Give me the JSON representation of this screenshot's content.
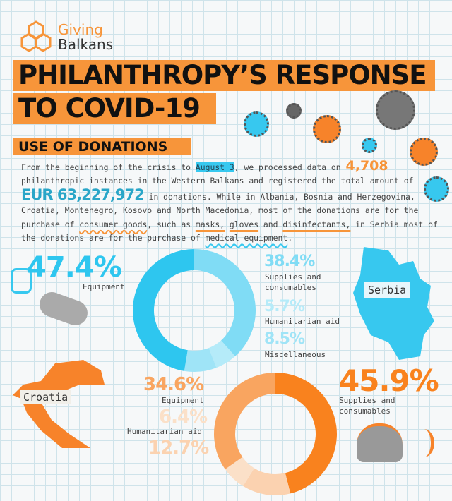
{
  "logo": {
    "line1": "Giving",
    "line2": "Balkans",
    "colors": {
      "orange": "#f7953a",
      "dark": "#333333"
    }
  },
  "title": {
    "line1": "PHILANTHROPY’S RESPONSE",
    "line2": "TO COVID-19"
  },
  "section": {
    "heading": "USE OF DONATIONS"
  },
  "paragraph": {
    "p1": "From the beginning of the crisis to ",
    "date": "August 3",
    "p2": ", we processed data on ",
    "instances": "4,708",
    "p3": "philanthropic instances in the Western Balkans and registered the total amount of ",
    "amount": "EUR 63,227,972",
    "p4": " in donations. While in Albania, Bosnia and Herzegovina, Croatia, Montenegro, Kosovo and North Macedonia, most of the donations are for the purchase of ",
    "consumer": "consumer goods",
    "p5": ", such as ",
    "masks": "masks,",
    "gloves": "gloves",
    "p6": " and ",
    "disinfectants": "disinfectants,",
    "p7": " in Serbia most of the donations are for the purchase of ",
    "medical": "medical equipment",
    "p8": "."
  },
  "serbia": {
    "label": "Serbia",
    "color": "#37c8ef",
    "segments": [
      {
        "pct": "38.4%",
        "label": "Supplies and consumables",
        "value": 38.4,
        "color": "#80dcf5"
      },
      {
        "pct": "5.7%",
        "label": "Humanitarian aid",
        "value": 5.7,
        "color": "#b5ebf9"
      },
      {
        "pct": "8.5%",
        "label": "Miscellaneous",
        "value": 8.5,
        "color": "#9fe4f7"
      },
      {
        "pct": "47.4%",
        "label": "Equipment",
        "value": 47.4,
        "color": "#2ec6ef"
      }
    ]
  },
  "croatia": {
    "label": "Croatia",
    "color": "#f7832a",
    "segments": [
      {
        "pct": "45.9%",
        "label": "Supplies and consumables",
        "value": 45.9,
        "color": "#f9821e"
      },
      {
        "pct": "12.7%",
        "label": "",
        "value": 12.7,
        "color": "#fbd2b0"
      },
      {
        "pct": "6.4%",
        "label": "Humanitarian aid",
        "value": 6.4,
        "color": "#fbe0c8"
      },
      {
        "pct": "34.6%",
        "label": "Equipment",
        "value": 34.6,
        "color": "#f9a560"
      }
    ]
  }
}
